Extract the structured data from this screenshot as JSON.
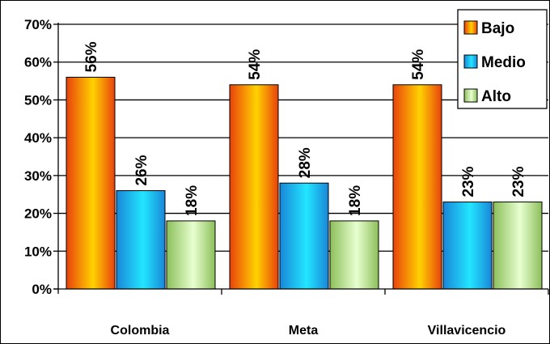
{
  "chart_data": {
    "type": "bar",
    "categories": [
      "Colombia",
      "Meta",
      "Villavicencio"
    ],
    "series": [
      {
        "name": "Bajo",
        "values": [
          56,
          54,
          54
        ],
        "labels": [
          "56%",
          "54%",
          "54%"
        ]
      },
      {
        "name": "Medio",
        "values": [
          26,
          28,
          23
        ],
        "labels": [
          "26%",
          "28%",
          "23%"
        ]
      },
      {
        "name": "Alto",
        "values": [
          18,
          18,
          23
        ],
        "labels": [
          "18%",
          "18%",
          "23%"
        ]
      }
    ],
    "y_ticks": [
      "0%",
      "10%",
      "20%",
      "30%",
      "40%",
      "50%",
      "60%",
      "70%"
    ],
    "ylim": [
      0,
      70
    ],
    "grid": true,
    "legend_position": "top-right",
    "colors": {
      "Bajo": [
        "#e8420c",
        "#ffd200"
      ],
      "Medio": [
        "#1a86d8",
        "#22e6ff"
      ],
      "Alto": [
        "#8cbf5a",
        "#e8ffd0"
      ]
    }
  }
}
